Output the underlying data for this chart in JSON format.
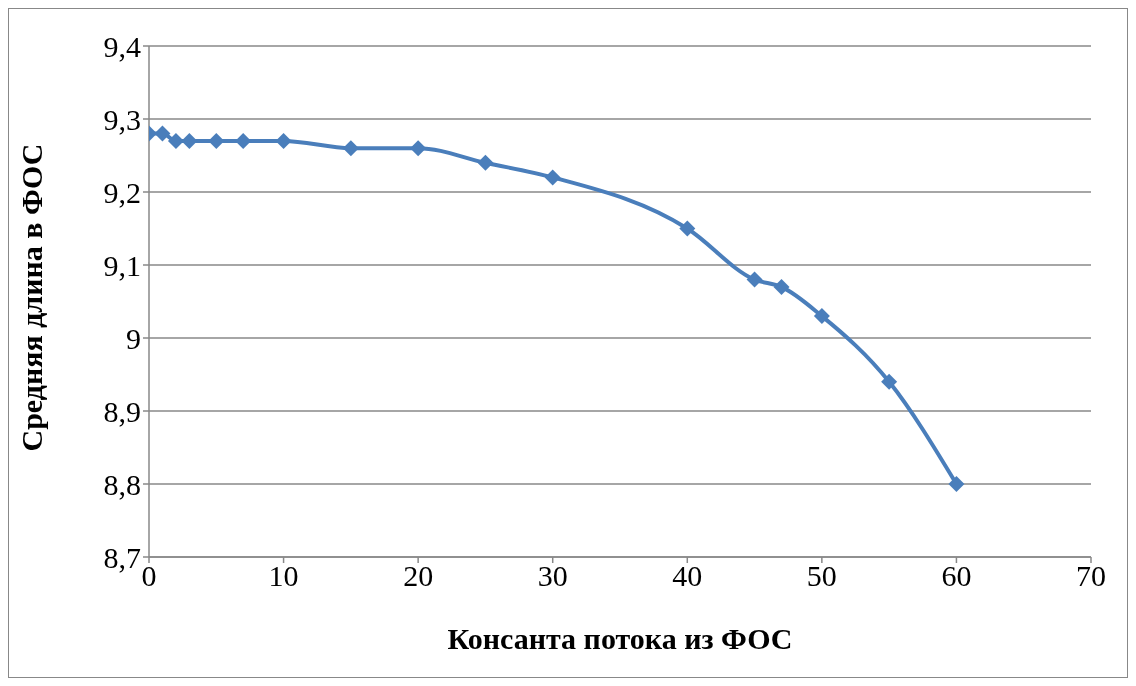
{
  "chart_data": {
    "type": "line",
    "xlabel": "Консанта потока из ФОС",
    "ylabel": "Средняя длина в ФОС",
    "x": [
      0,
      1,
      2,
      3,
      5,
      7,
      10,
      15,
      20,
      25,
      30,
      40,
      45,
      47,
      50,
      55,
      60
    ],
    "series": [
      {
        "color": "#4a7ebb",
        "values": [
          9.28,
          9.28,
          9.27,
          9.27,
          9.27,
          9.27,
          9.27,
          9.26,
          9.26,
          9.24,
          9.22,
          9.15,
          9.08,
          9.07,
          9.03,
          8.94,
          8.8
        ]
      }
    ],
    "xlim": [
      0,
      70
    ],
    "xticks": [
      0,
      10,
      20,
      30,
      40,
      50,
      60,
      70
    ],
    "ylim": [
      8.7,
      9.4
    ],
    "yticks": [
      {
        "value": 8.7,
        "label": "8,7"
      },
      {
        "value": 8.8,
        "label": "8,8"
      },
      {
        "value": 8.9,
        "label": "8,9"
      },
      {
        "value": 9,
        "label": "9"
      },
      {
        "value": 9.1,
        "label": "9,1"
      },
      {
        "value": 9.2,
        "label": "9,2"
      },
      {
        "value": 9.3,
        "label": "9,3"
      },
      {
        "value": 9.4,
        "label": "9,4"
      }
    ],
    "grid": "y",
    "marker": "diamond",
    "line_style": "solid",
    "legend": false
  }
}
